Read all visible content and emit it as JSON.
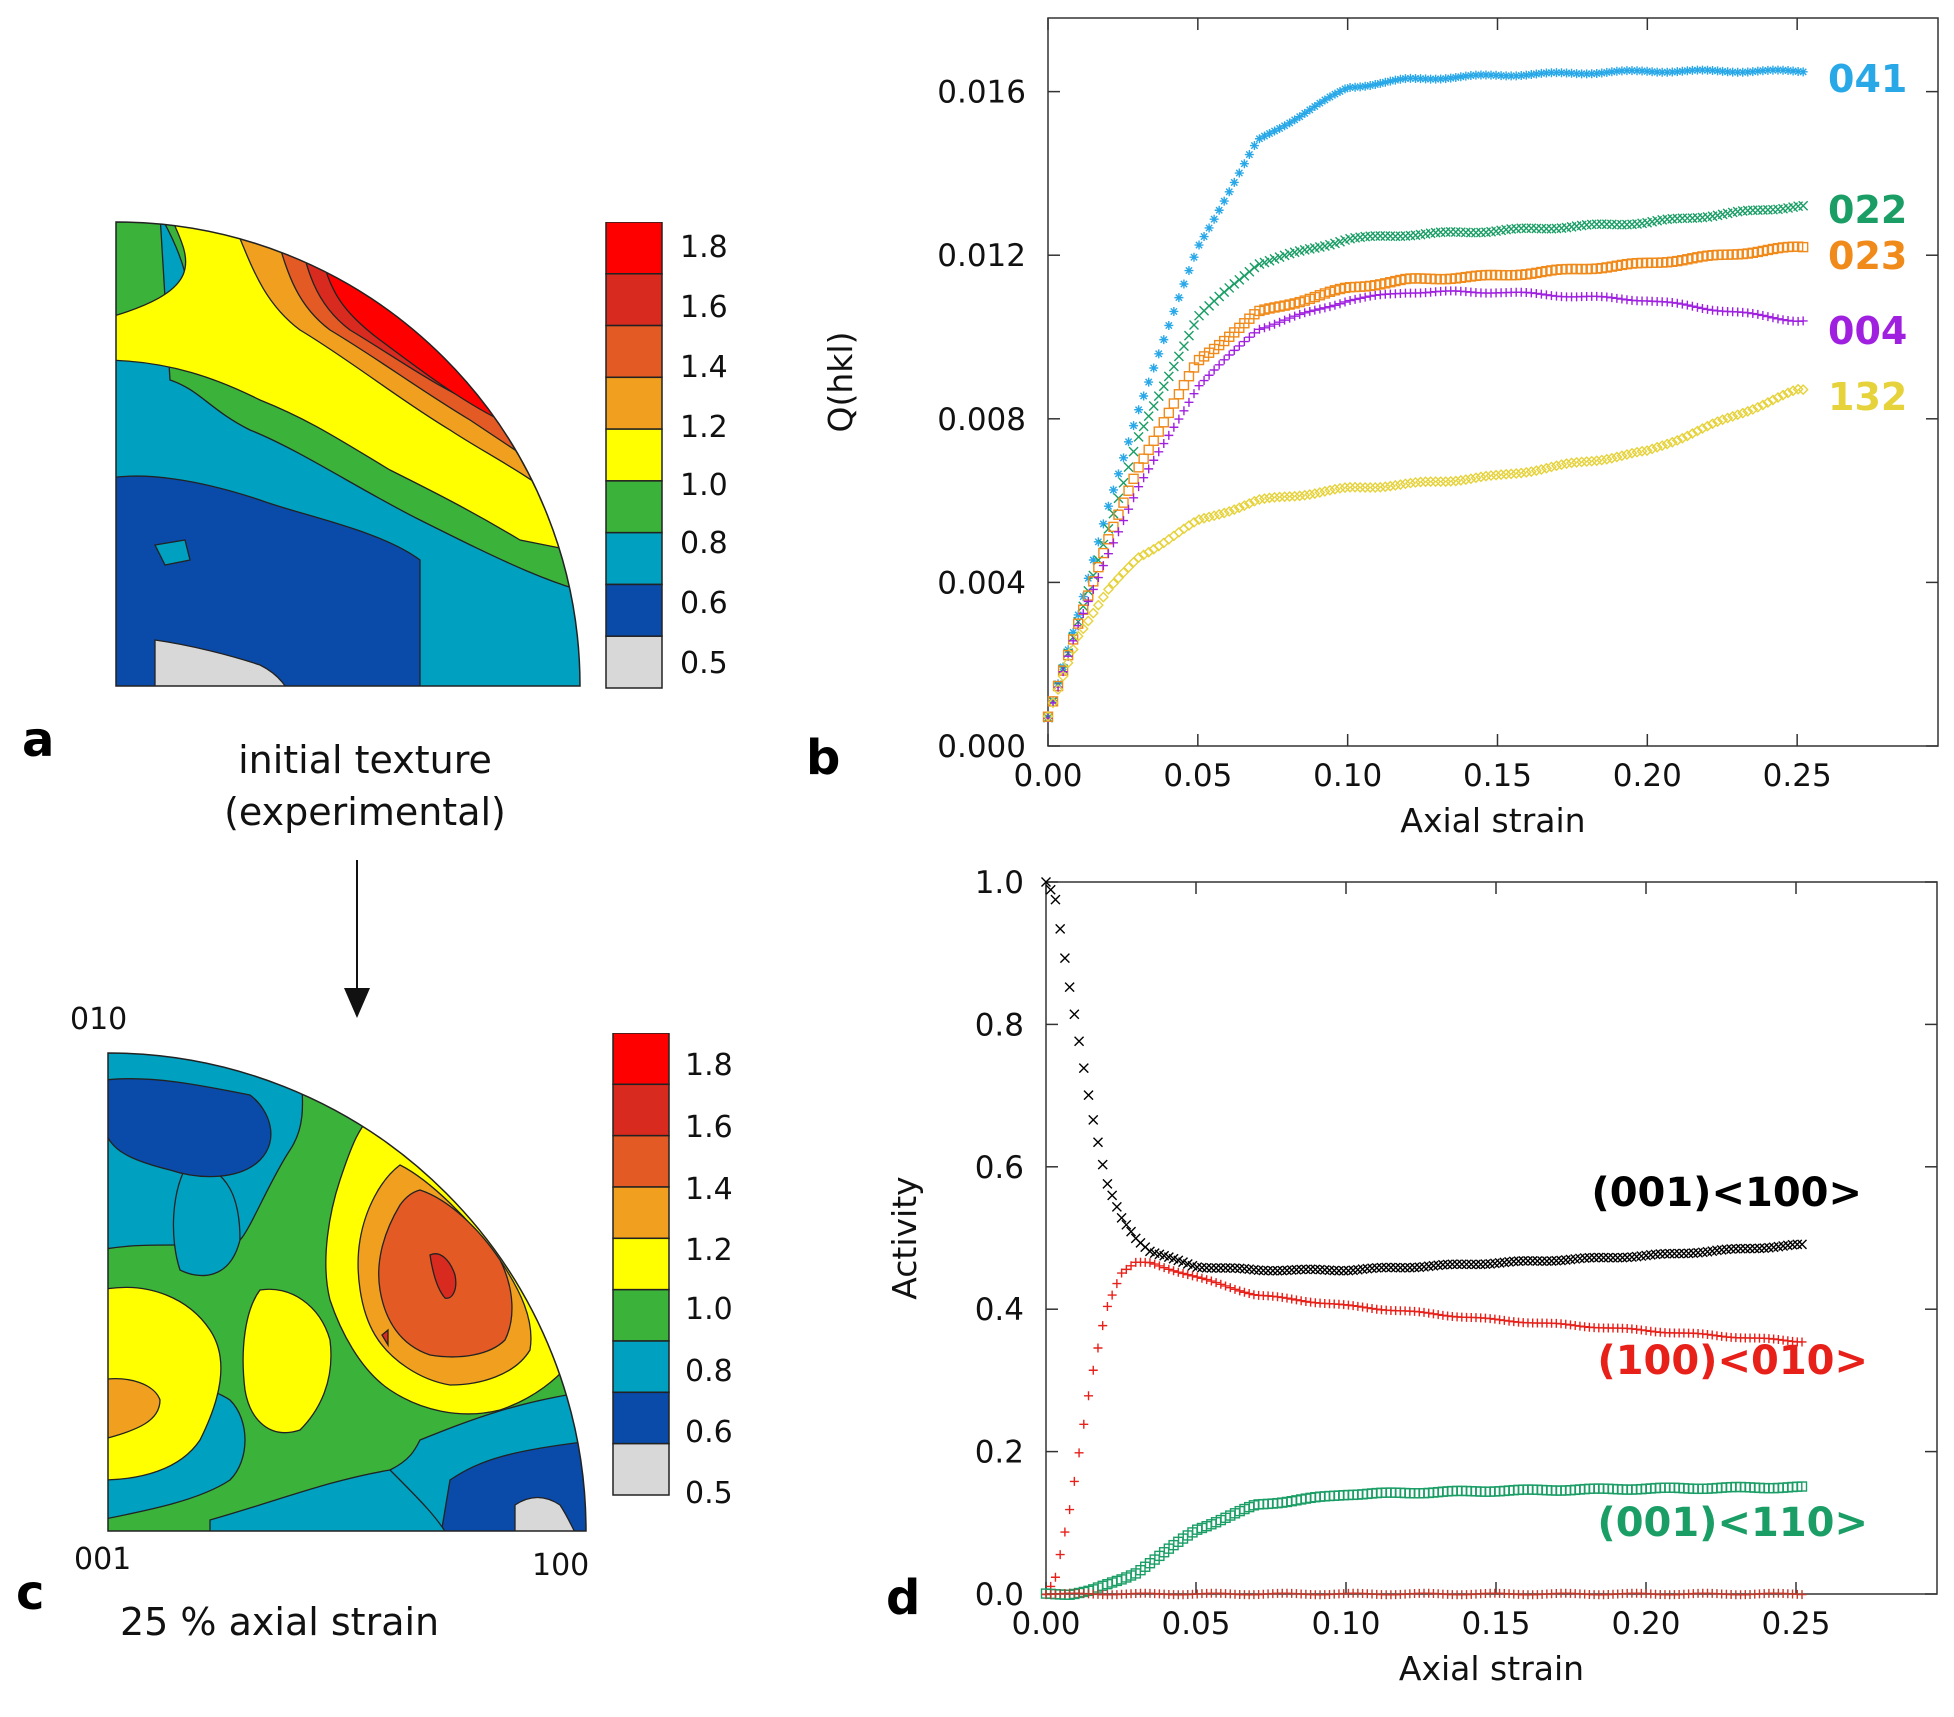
{
  "panels": {
    "a": {
      "letter": "a",
      "caption_lines": [
        "initial texture",
        "(experimental)"
      ],
      "colorbar": {
        "labels": [
          "1.8",
          "1.6",
          "1.4",
          "1.2",
          "1.0",
          "0.8",
          "0.6",
          "0.5"
        ],
        "colors": [
          "#ff0000",
          "#d92a1f",
          "#e35a24",
          "#f0a01e",
          "#ffff00",
          "#3bb33b",
          "#00a0c0",
          "#0a4aa8",
          "#d8d8d8"
        ]
      }
    },
    "c": {
      "letter": "c",
      "caption": "25 % axial strain",
      "corner_labels": {
        "top": "010",
        "bottom_left": "001",
        "bottom_right": "100"
      },
      "colorbar": {
        "labels": [
          "1.8",
          "1.6",
          "1.4",
          "1.2",
          "1.0",
          "0.8",
          "0.6",
          "0.5"
        ],
        "colors": [
          "#ff0000",
          "#d92a1f",
          "#e35a24",
          "#f0a01e",
          "#ffff00",
          "#3bb33b",
          "#00a0c0",
          "#0a4aa8",
          "#d8d8d8"
        ]
      }
    },
    "b": {
      "letter": "b"
    },
    "d": {
      "letter": "d"
    }
  },
  "chart_data": [
    {
      "panel": "b",
      "type": "scatter",
      "xlabel": "Axial strain",
      "ylabel": "Q(hkl)",
      "xlim": [
        0,
        0.297
      ],
      "ylim": [
        0,
        0.0178
      ],
      "xticks": [
        "0.00",
        "0.05",
        "0.10",
        "0.15",
        "0.20",
        "0.25"
      ],
      "yticks": [
        "0.000",
        "0.004",
        "0.008",
        "0.012",
        "0.016"
      ],
      "x_knots": [
        0.0,
        0.01,
        0.02,
        0.03,
        0.05,
        0.07,
        0.1,
        0.12,
        0.15,
        0.2,
        0.25
      ],
      "series": [
        {
          "name": "041",
          "color": "#29a8e8",
          "marker": "asterisk",
          "values": [
            0.0007,
            0.0032,
            0.0058,
            0.0082,
            0.0122,
            0.0148,
            0.0161,
            0.0163,
            0.0164,
            0.0165,
            0.0165
          ]
        },
        {
          "name": "022",
          "color": "#1a9e66",
          "marker": "x",
          "values": [
            0.0007,
            0.003,
            0.0053,
            0.0075,
            0.0105,
            0.0118,
            0.0124,
            0.0125,
            0.0126,
            0.0128,
            0.0132
          ]
        },
        {
          "name": "023",
          "color": "#f08a1a",
          "marker": "square",
          "values": [
            0.0007,
            0.003,
            0.005,
            0.0068,
            0.0094,
            0.0106,
            0.0112,
            0.0114,
            0.0115,
            0.0118,
            0.0122
          ]
        },
        {
          "name": "004",
          "color": "#a020e0",
          "marker": "plus",
          "values": [
            0.0007,
            0.0029,
            0.0047,
            0.0063,
            0.0088,
            0.0102,
            0.0109,
            0.0111,
            0.0111,
            0.0109,
            0.0104
          ]
        },
        {
          "name": "132",
          "color": "#e6d23a",
          "marker": "diamond",
          "values": [
            0.0007,
            0.0027,
            0.0038,
            0.0046,
            0.0055,
            0.006,
            0.0063,
            0.0064,
            0.0066,
            0.0072,
            0.0087
          ]
        }
      ]
    },
    {
      "panel": "d",
      "type": "scatter",
      "xlabel": "Axial strain",
      "ylabel": "Activity",
      "xlim": [
        0,
        0.297
      ],
      "ylim": [
        0,
        1.0
      ],
      "xticks": [
        "0.00",
        "0.05",
        "0.10",
        "0.15",
        "0.20",
        "0.25"
      ],
      "yticks": [
        "0.0",
        "0.2",
        "0.4",
        "0.6",
        "0.8",
        "1.0"
      ],
      "x_knots": [
        0.0,
        0.003,
        0.008,
        0.015,
        0.02,
        0.025,
        0.03,
        0.035,
        0.05,
        0.07,
        0.1,
        0.15,
        0.2,
        0.25
      ],
      "series": [
        {
          "name": "(001)<100>",
          "color": "#000000",
          "marker": "x",
          "values": [
            1.0,
            0.98,
            0.85,
            0.68,
            0.58,
            0.53,
            0.5,
            0.48,
            0.46,
            0.455,
            0.455,
            0.465,
            0.475,
            0.49
          ]
        },
        {
          "name": "(100)<010>",
          "color": "#e8201a",
          "marker": "plus",
          "values": [
            0.0,
            0.02,
            0.12,
            0.3,
            0.4,
            0.45,
            0.465,
            0.465,
            0.445,
            0.42,
            0.405,
            0.385,
            0.37,
            0.355
          ]
        },
        {
          "name": "(001)<110>",
          "color": "#1a9e66",
          "marker": "square",
          "values": [
            0.0,
            0.0,
            0.0,
            0.005,
            0.012,
            0.02,
            0.03,
            0.045,
            0.09,
            0.125,
            0.14,
            0.145,
            0.148,
            0.15
          ]
        },
        {
          "name": "",
          "color": "#c0392b",
          "marker": "plus",
          "values": [
            0.0,
            0.0,
            0.0,
            0.0,
            0.0,
            0.0,
            0.0,
            0.0,
            0.0,
            0.0,
            0.0,
            0.0,
            0.0,
            0.0
          ]
        }
      ]
    }
  ]
}
